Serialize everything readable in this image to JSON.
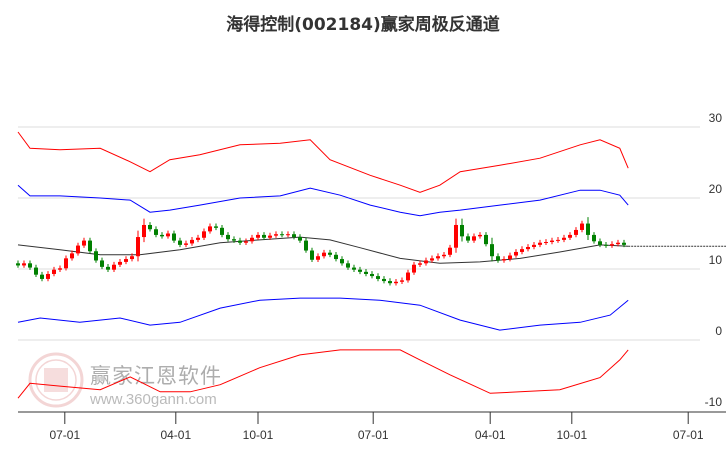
{
  "chart_data": {
    "type": "candlestick",
    "title": "海得控制(002184)赢家周极反通道",
    "yticks": [
      30,
      20,
      10,
      0,
      -10
    ],
    "ylim": [
      -10,
      30
    ],
    "xticks": [
      {
        "t": 7.8,
        "label": "07-01"
      },
      {
        "t": 26.3,
        "label": "04-01"
      },
      {
        "t": 40,
        "label": "10-01"
      },
      {
        "t": 59.2,
        "label": "07-01"
      },
      {
        "t": 78.7,
        "label": "04-01"
      },
      {
        "t": 92.3,
        "label": "10-01"
      },
      {
        "t": 111.7,
        "label": "07-01"
      }
    ],
    "closes": [
      10.5,
      10.8,
      10.2,
      9.2,
      8.6,
      9.3,
      9.9,
      10.1,
      11.5,
      12.2,
      13.3,
      14.0,
      12.5,
      11.2,
      10.3,
      9.9,
      10.6,
      11.0,
      11.4,
      11.8,
      14.5,
      16.2,
      15.6,
      14.8,
      14.6,
      15.0,
      14.0,
      13.4,
      13.6,
      14.1,
      14.4,
      15.3,
      16.0,
      15.8,
      14.8,
      14.2,
      14.0,
      13.7,
      13.9,
      14.4,
      14.8,
      14.4,
      14.7,
      14.9,
      14.8,
      14.9,
      14.5,
      14.0,
      12.6,
      11.3,
      11.8,
      12.3,
      12.0,
      11.4,
      10.8,
      10.2,
      9.9,
      9.6,
      9.3,
      9.0,
      8.6,
      8.3,
      8.0,
      8.2,
      8.4,
      9.5,
      10.6,
      10.8,
      11.2,
      11.5,
      11.8,
      12.0,
      13.0,
      16.2,
      14.6,
      14.0,
      14.6,
      14.8,
      13.5,
      11.8,
      11.2,
      11.4,
      11.9,
      12.4,
      12.8,
      13.1,
      13.4,
      13.7,
      13.8,
      14.0,
      14.1,
      14.4,
      14.8,
      15.5,
      16.4,
      14.8,
      13.9,
      13.4,
      13.3,
      13.5,
      13.7,
      13.4
    ],
    "series": [
      {
        "name": "upper-outer",
        "color": "#ff0000",
        "points": [
          [
            0,
            29.3
          ],
          [
            2,
            27.0
          ],
          [
            7,
            26.8
          ],
          [
            13.7,
            27.0
          ],
          [
            18.7,
            25.1
          ],
          [
            22,
            23.7
          ],
          [
            25.3,
            25.4
          ],
          [
            30.3,
            26.1
          ],
          [
            37,
            27.5
          ],
          [
            43.7,
            27.7
          ],
          [
            48.7,
            28.2
          ],
          [
            52,
            25.4
          ],
          [
            58.7,
            23.2
          ],
          [
            63.7,
            21.8
          ],
          [
            67,
            20.8
          ],
          [
            70.3,
            21.8
          ],
          [
            73.7,
            23.7
          ],
          [
            80.3,
            24.6
          ],
          [
            87,
            25.6
          ],
          [
            93.7,
            27.5
          ],
          [
            97,
            28.2
          ],
          [
            100.3,
            27.0
          ],
          [
            101.7,
            24.2
          ]
        ]
      },
      {
        "name": "upper-inner",
        "color": "#0000ff",
        "points": [
          [
            0,
            21.8
          ],
          [
            2,
            20.3
          ],
          [
            7,
            20.3
          ],
          [
            13.7,
            20.0
          ],
          [
            18.7,
            19.7
          ],
          [
            22,
            18.0
          ],
          [
            25.3,
            18.3
          ],
          [
            30.3,
            19.0
          ],
          [
            37,
            20.0
          ],
          [
            43.7,
            20.3
          ],
          [
            48.7,
            21.4
          ],
          [
            53.7,
            20.4
          ],
          [
            58.7,
            19.0
          ],
          [
            63.7,
            18.0
          ],
          [
            67,
            17.5
          ],
          [
            70.3,
            18.0
          ],
          [
            73.7,
            18.3
          ],
          [
            80.3,
            19.0
          ],
          [
            87,
            19.7
          ],
          [
            93.7,
            21.1
          ],
          [
            97,
            21.1
          ],
          [
            100.3,
            20.4
          ],
          [
            101.7,
            19.0
          ]
        ]
      },
      {
        "name": "middle",
        "color": "#333333",
        "points": [
          [
            0,
            13.4
          ],
          [
            7,
            12.7
          ],
          [
            13.7,
            12.0
          ],
          [
            20.3,
            12.0
          ],
          [
            27,
            12.7
          ],
          [
            33.7,
            13.7
          ],
          [
            40.3,
            14.1
          ],
          [
            47,
            14.5
          ],
          [
            52,
            14.1
          ],
          [
            57,
            13.0
          ],
          [
            63.7,
            11.5
          ],
          [
            70.3,
            10.8
          ],
          [
            77,
            11.0
          ],
          [
            83.7,
            11.5
          ],
          [
            90.3,
            12.4
          ],
          [
            97,
            13.4
          ],
          [
            101.7,
            13.2
          ]
        ]
      },
      {
        "name": "lower-inner",
        "color": "#0000ff",
        "points": [
          [
            0,
            2.5
          ],
          [
            3.7,
            3.1
          ],
          [
            10.3,
            2.5
          ],
          [
            17,
            3.1
          ],
          [
            22,
            2.1
          ],
          [
            27,
            2.5
          ],
          [
            33.7,
            4.5
          ],
          [
            40.3,
            5.6
          ],
          [
            47,
            5.9
          ],
          [
            53.7,
            5.9
          ],
          [
            60.3,
            5.6
          ],
          [
            67,
            4.9
          ],
          [
            73.7,
            2.8
          ],
          [
            80.3,
            1.4
          ],
          [
            87,
            2.1
          ],
          [
            93.7,
            2.5
          ],
          [
            98.7,
            3.5
          ],
          [
            101.7,
            5.6
          ]
        ]
      },
      {
        "name": "lower-outer",
        "color": "#ff0000",
        "points": [
          [
            0,
            -8.2
          ],
          [
            2,
            -6.1
          ],
          [
            7,
            -6.5
          ],
          [
            13.7,
            -7.0
          ],
          [
            18.7,
            -5.2
          ],
          [
            23.7,
            -7.3
          ],
          [
            28.7,
            -7.3
          ],
          [
            33.7,
            -6.3
          ],
          [
            40.3,
            -3.9
          ],
          [
            47,
            -2.1
          ],
          [
            53.7,
            -1.4
          ],
          [
            60.3,
            -1.4
          ],
          [
            63.7,
            -1.4
          ],
          [
            67,
            -2.8
          ],
          [
            72,
            -4.9
          ],
          [
            78.7,
            -7.5
          ],
          [
            83.7,
            -7.3
          ],
          [
            90.3,
            -7.0
          ],
          [
            97,
            -5.3
          ],
          [
            100.3,
            -2.8
          ],
          [
            101.7,
            -1.4
          ]
        ]
      }
    ],
    "up_color": "#ff0000",
    "down_color": "#008000"
  },
  "watermark": {
    "name": "赢家江恩软件",
    "url": "www.360gann.com",
    "seal": "江赢恩家"
  }
}
